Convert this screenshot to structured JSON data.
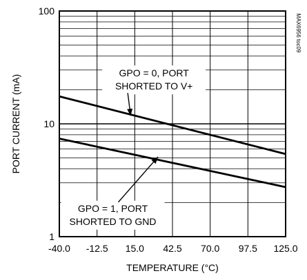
{
  "chart_data": {
    "type": "line",
    "xlabel": "TEMPERATURE (°C)",
    "ylabel": "PORT CURRENT (mA)",
    "watermark": "MAX6956 toc09",
    "xlim": [
      -40.0,
      125.0
    ],
    "ylim": [
      1,
      100
    ],
    "y_scale": "log",
    "grid": true,
    "x_ticks": [
      "-40.0",
      "-12.5",
      "15.0",
      "42.5",
      "70.0",
      "97.5",
      "125.0"
    ],
    "x_tick_values": [
      -40.0,
      -12.5,
      15.0,
      42.5,
      70.0,
      97.5,
      125.0
    ],
    "y_ticks": [
      "1",
      "10",
      "100"
    ],
    "y_tick_values": [
      1,
      10,
      100
    ],
    "series": [
      {
        "name": "GPO = 0, PORT SHORTED TO V+",
        "x": [
          -40.0,
          125.0
        ],
        "y": [
          17.5,
          5.4
        ]
      },
      {
        "name": "GPO = 1, PORT SHORTED TO GND",
        "x": [
          -40.0,
          125.0
        ],
        "y": [
          7.4,
          2.75
        ]
      }
    ],
    "annotations": [
      {
        "lines": [
          "GPO = 0, PORT",
          "SHORTED TO V+"
        ],
        "x": 29.0,
        "y": 24.5,
        "arrow_to": [
          12.0,
          11.8
        ]
      },
      {
        "lines": [
          "GPO = 1, PORT",
          "SHORTED TO GND"
        ],
        "x": -1.0,
        "y": 1.55,
        "arrow_to": [
          32.0,
          5.1
        ]
      }
    ]
  }
}
